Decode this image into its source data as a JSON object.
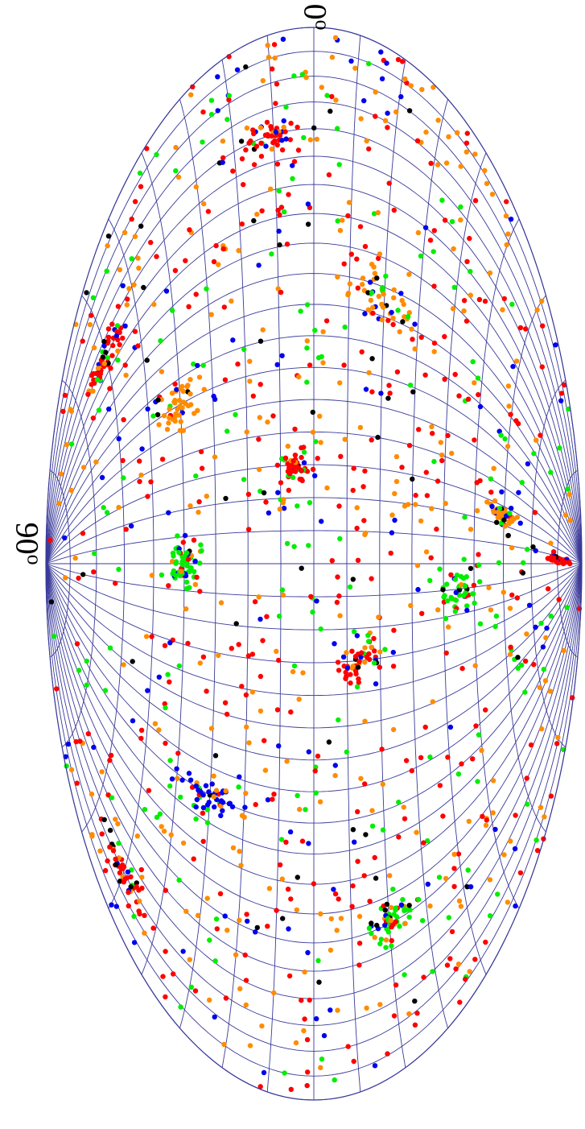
{
  "chart_data": {
    "type": "scatter",
    "projection": "aitoff-hammer",
    "orientation": "rotated-90",
    "title": "",
    "xlabel": "",
    "ylabel": "",
    "annotations": [
      {
        "id": "lat90",
        "base": "90",
        "sup": "o"
      },
      {
        "id": "lat0",
        "base": "0",
        "sup": "o"
      }
    ],
    "grid": true,
    "grid_color": "#3a3a9a",
    "grid_step_deg": 10,
    "xlim": [
      -180,
      180
    ],
    "ylim": [
      -90,
      90
    ],
    "series_colors": [
      "#ff0000",
      "#ff8c00",
      "#00ee00",
      "#0000ee",
      "#000000"
    ],
    "seed_points": [
      {
        "x": 0,
        "y": -85,
        "color": "#ff0000"
      },
      {
        "x": 15,
        "y": -60,
        "color": "#ff8c00"
      },
      {
        "x": -40,
        "y": -55,
        "color": "#00ee00"
      },
      {
        "x": -120,
        "y": -30,
        "color": "#0000ee"
      },
      {
        "x": 10,
        "y": 75,
        "color": "#000000"
      }
    ]
  }
}
